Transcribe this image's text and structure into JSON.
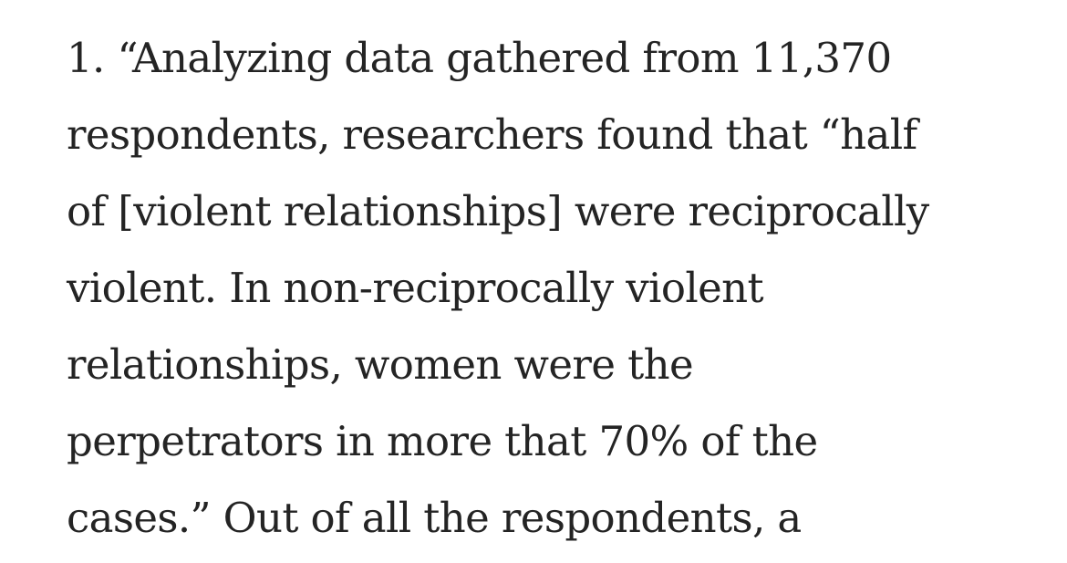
{
  "article": {
    "paragraph_lines": [
      "1. “Analyzing data gathered from 11,370",
      "respondents, researchers found that “half",
      "of [violent relationships] were reciprocally",
      "violent. In non-reciprocally violent",
      "relationships, women were the",
      "perpetrators in more that 70% of the",
      "cases.” Out of all the respondents, a"
    ]
  }
}
